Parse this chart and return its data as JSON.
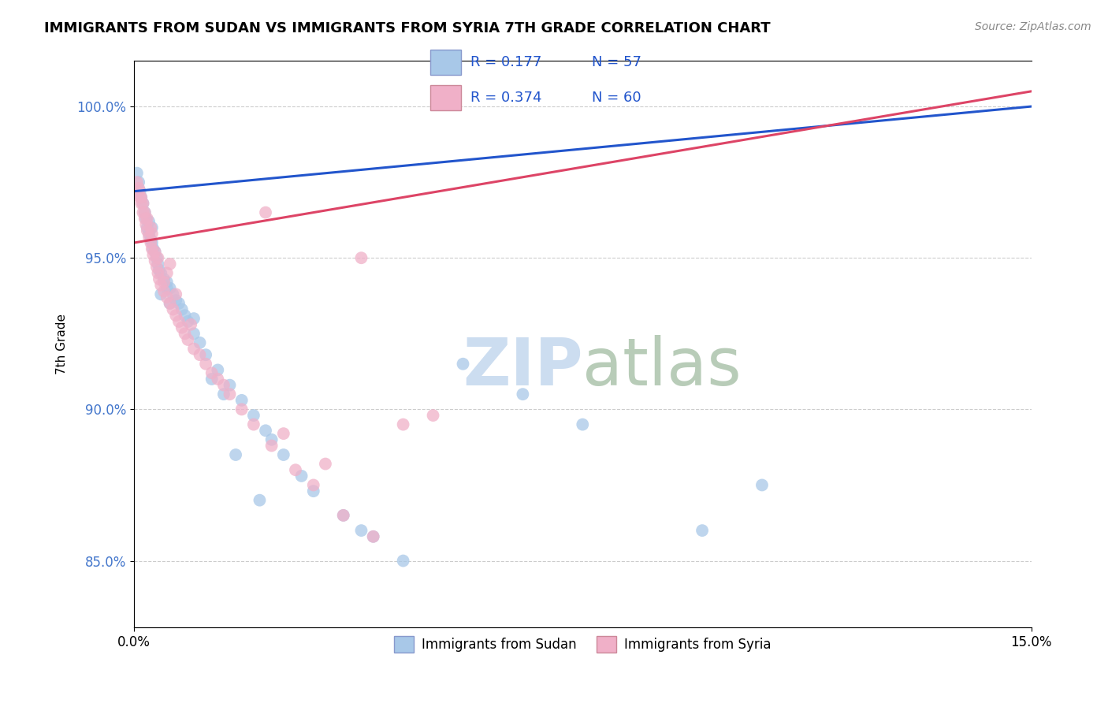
{
  "title": "IMMIGRANTS FROM SUDAN VS IMMIGRANTS FROM SYRIA 7TH GRADE CORRELATION CHART",
  "source": "Source: ZipAtlas.com",
  "ylabel": "7th Grade",
  "xmin": 0.0,
  "xmax": 15.0,
  "ymin": 82.8,
  "ymax": 101.5,
  "y_ticks": [
    85.0,
    90.0,
    95.0,
    100.0
  ],
  "y_tick_labels": [
    "85.0%",
    "90.0%",
    "95.0%",
    "100.0%"
  ],
  "legend_r_sudan": "R = 0.177",
  "legend_n_sudan": "N = 57",
  "legend_r_syria": "R = 0.374",
  "legend_n_syria": "N = 60",
  "color_sudan": "#a8c8e8",
  "color_syria": "#f0b0c8",
  "line_color_sudan": "#2255cc",
  "line_color_syria": "#dd4466",
  "watermark_zip_color": "#ccddf0",
  "watermark_atlas_color": "#b8ccb8",
  "sudan_line_x0": 0.0,
  "sudan_line_y0": 97.2,
  "sudan_line_x1": 15.0,
  "sudan_line_y1": 100.0,
  "syria_line_x0": 0.0,
  "syria_line_y0": 95.5,
  "syria_line_x1": 15.0,
  "syria_line_y1": 100.5,
  "sudan_x": [
    0.05,
    0.08,
    0.1,
    0.12,
    0.15,
    0.18,
    0.2,
    0.22,
    0.25,
    0.28,
    0.3,
    0.32,
    0.35,
    0.38,
    0.4,
    0.42,
    0.45,
    0.5,
    0.55,
    0.6,
    0.65,
    0.7,
    0.75,
    0.8,
    0.85,
    0.9,
    1.0,
    1.1,
    1.2,
    1.4,
    1.6,
    1.8,
    2.0,
    2.2,
    2.5,
    2.8,
    3.0,
    3.5,
    4.0,
    4.5,
    1.3,
    1.5,
    2.3,
    3.8,
    5.5,
    6.5,
    7.5,
    1.7,
    2.1,
    9.5,
    10.5,
    1.0,
    0.6,
    0.55,
    0.45,
    0.3,
    0.25
  ],
  "sudan_y": [
    97.8,
    97.5,
    97.2,
    97.0,
    96.8,
    96.5,
    96.3,
    96.0,
    95.8,
    95.6,
    95.5,
    95.3,
    95.2,
    95.0,
    94.8,
    94.6,
    94.5,
    94.3,
    94.2,
    94.0,
    93.8,
    93.6,
    93.5,
    93.3,
    93.1,
    92.9,
    92.5,
    92.2,
    91.8,
    91.3,
    90.8,
    90.3,
    89.8,
    89.3,
    88.5,
    87.8,
    87.3,
    86.5,
    85.8,
    85.0,
    91.0,
    90.5,
    89.0,
    86.0,
    91.5,
    90.5,
    89.5,
    88.5,
    87.0,
    86.0,
    87.5,
    93.0,
    93.5,
    94.0,
    93.8,
    96.0,
    96.2
  ],
  "syria_x": [
    0.05,
    0.08,
    0.1,
    0.12,
    0.15,
    0.18,
    0.2,
    0.22,
    0.25,
    0.28,
    0.3,
    0.32,
    0.35,
    0.38,
    0.4,
    0.42,
    0.45,
    0.5,
    0.55,
    0.6,
    0.65,
    0.7,
    0.75,
    0.8,
    0.85,
    0.9,
    1.0,
    1.2,
    1.4,
    1.6,
    1.8,
    2.0,
    2.3,
    2.7,
    3.0,
    3.5,
    4.0,
    1.1,
    1.3,
    0.95,
    0.55,
    0.6,
    0.4,
    0.35,
    0.28,
    0.22,
    0.18,
    0.15,
    0.12,
    0.08,
    2.5,
    3.2,
    4.5,
    5.0,
    3.8,
    2.2,
    1.5,
    0.7,
    0.5,
    0.3
  ],
  "syria_y": [
    97.5,
    97.2,
    97.0,
    96.8,
    96.5,
    96.3,
    96.1,
    95.9,
    95.7,
    95.5,
    95.3,
    95.1,
    94.9,
    94.7,
    94.5,
    94.3,
    94.1,
    93.9,
    93.7,
    93.5,
    93.3,
    93.1,
    92.9,
    92.7,
    92.5,
    92.3,
    92.0,
    91.5,
    91.0,
    90.5,
    90.0,
    89.5,
    88.8,
    88.0,
    87.5,
    86.5,
    85.8,
    91.8,
    91.2,
    92.8,
    94.5,
    94.8,
    95.0,
    95.2,
    96.0,
    96.3,
    96.5,
    96.8,
    97.0,
    97.3,
    89.2,
    88.2,
    89.5,
    89.8,
    95.0,
    96.5,
    90.8,
    93.8,
    94.2,
    95.8
  ]
}
